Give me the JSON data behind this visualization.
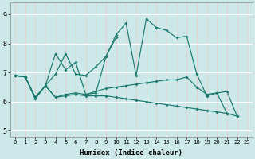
{
  "xlabel": "Humidex (Indice chaleur)",
  "bg_color": "#cce8e8",
  "line_color": "#1a7a6e",
  "grid_color": "#ffffff",
  "grid_minor_color": "#e8d8d8",
  "xlim": [
    -0.5,
    23.5
  ],
  "ylim": [
    4.8,
    9.4
  ],
  "xticks": [
    0,
    1,
    2,
    3,
    4,
    5,
    6,
    7,
    8,
    9,
    10,
    11,
    12,
    13,
    14,
    15,
    16,
    17,
    18,
    19,
    20,
    21,
    22,
    23
  ],
  "yticks": [
    5,
    6,
    7,
    8,
    9
  ],
  "lines": [
    [
      6.9,
      6.85,
      6.1,
      6.55,
      7.65,
      7.1,
      7.35,
      6.25,
      6.3,
      7.55,
      8.3,
      8.7,
      6.9,
      8.85,
      8.55,
      8.45,
      8.2,
      8.25,
      6.95,
      6.2,
      6.3,
      5.6,
      null,
      null
    ],
    [
      6.9,
      6.85,
      6.1,
      6.55,
      6.95,
      7.65,
      6.95,
      6.9,
      7.2,
      7.55,
      8.2,
      null,
      null,
      null,
      null,
      null,
      null,
      null,
      null,
      null,
      null,
      null,
      null,
      null
    ],
    [
      6.9,
      6.85,
      6.15,
      6.55,
      6.15,
      6.25,
      6.3,
      6.25,
      6.35,
      6.45,
      6.5,
      6.55,
      6.6,
      6.65,
      6.7,
      6.75,
      6.75,
      6.85,
      6.5,
      6.25,
      6.3,
      6.35,
      5.5,
      null
    ],
    [
      6.9,
      6.85,
      6.15,
      6.55,
      6.15,
      6.2,
      6.25,
      6.2,
      6.2,
      6.2,
      6.15,
      6.1,
      6.05,
      6.0,
      5.95,
      5.9,
      5.85,
      5.8,
      5.75,
      5.7,
      5.65,
      5.6,
      5.5,
      null
    ]
  ]
}
